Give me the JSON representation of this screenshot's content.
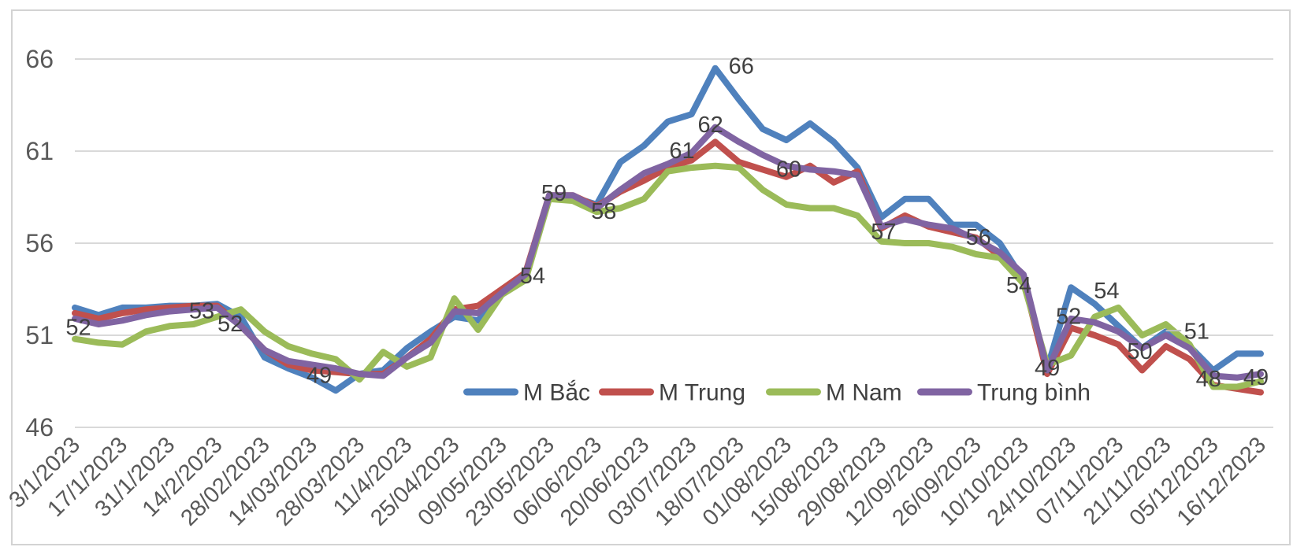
{
  "chart_data": {
    "type": "line",
    "title": "",
    "xlabel": "",
    "ylabel": "",
    "ylim": [
      46,
      66
    ],
    "y_ticks": [
      46,
      51,
      56,
      61,
      66
    ],
    "grid": "horizontal",
    "legend_position": "bottom-center-inside",
    "x_labels": [
      "3/1/2023",
      "17/1/2023",
      "31/1/2023",
      "14/2/2023",
      "28/02/2023",
      "14/03/2023",
      "28/03/2023",
      "11/4/2023",
      "25/04/2023",
      "09/05/2023",
      "23/05/2023",
      "06/06/2023",
      "20/06/2023",
      "03/07/2023",
      "18/07/2023",
      "01/08/2023",
      "15/08/2023",
      "29/08/2023",
      "12/09/2023",
      "26/09/2023",
      "10/10/2023",
      "24/10/2023",
      "07/11/2023",
      "21/11/2023",
      "05/12/2023",
      "16/12/2023"
    ],
    "points_per_label": 2,
    "n_points": 51,
    "series": [
      {
        "name": "M Bắc",
        "key": "m-bac",
        "color": "#4F81BD",
        "values": [
          52.5,
          52.1,
          52.5,
          52.5,
          52.6,
          52.6,
          52.7,
          52.0,
          49.8,
          49.2,
          48.7,
          48.0,
          48.9,
          49.1,
          50.3,
          51.2,
          52.0,
          51.8,
          53.2,
          54.2,
          58.5,
          58.5,
          58.1,
          60.4,
          61.3,
          62.6,
          63.0,
          65.5,
          63.8,
          62.2,
          61.6,
          62.5,
          61.5,
          60.1,
          57.4,
          58.4,
          58.4,
          57.0,
          57.0,
          56.0,
          54.0,
          49.2,
          53.6,
          52.7,
          51.5,
          50.3,
          51.2,
          50.4,
          49.1,
          50.0,
          50.0
        ]
      },
      {
        "name": "M Trung",
        "key": "m-trung",
        "color": "#C0504D",
        "values": [
          52.2,
          51.9,
          52.2,
          52.4,
          52.5,
          52.6,
          52.6,
          51.5,
          50.2,
          49.4,
          49.1,
          49.0,
          48.9,
          48.9,
          49.8,
          50.8,
          52.4,
          52.6,
          53.5,
          54.4,
          58.6,
          58.6,
          58.0,
          58.8,
          59.4,
          60.1,
          60.5,
          61.5,
          60.4,
          60.0,
          59.6,
          60.2,
          59.3,
          59.9,
          56.8,
          57.5,
          56.9,
          56.6,
          56.3,
          55.3,
          54.0,
          48.9,
          51.4,
          51.0,
          50.5,
          49.1,
          50.4,
          49.7,
          48.3,
          48.1,
          47.9
        ]
      },
      {
        "name": "M Nam",
        "key": "m-nam",
        "color": "#9BBB59",
        "values": [
          50.8,
          50.6,
          50.5,
          51.2,
          51.5,
          51.6,
          52.0,
          52.4,
          51.2,
          50.4,
          50.0,
          49.7,
          48.6,
          50.1,
          49.3,
          49.8,
          53.0,
          51.3,
          53.2,
          54.0,
          58.4,
          58.3,
          57.7,
          57.9,
          58.4,
          59.9,
          60.1,
          60.2,
          60.1,
          58.9,
          58.1,
          57.9,
          57.9,
          57.5,
          56.1,
          56.0,
          56.0,
          55.8,
          55.4,
          55.2,
          53.8,
          49.4,
          49.9,
          52.0,
          52.5,
          51.0,
          51.6,
          50.5,
          48.2,
          48.2,
          48.5
        ]
      },
      {
        "name": "Trung bình",
        "key": "trung-binh",
        "color": "#8064A2",
        "values": [
          51.9,
          51.6,
          51.8,
          52.1,
          52.3,
          52.4,
          52.5,
          51.5,
          50.2,
          49.6,
          49.4,
          49.2,
          48.9,
          48.8,
          49.8,
          50.6,
          52.3,
          52.2,
          53.3,
          54.3,
          58.6,
          58.6,
          57.9,
          58.9,
          59.8,
          60.3,
          60.9,
          62.3,
          61.5,
          60.8,
          60.2,
          60.0,
          59.9,
          59.7,
          56.9,
          57.3,
          57.0,
          56.8,
          56.2,
          55.5,
          54.3,
          49.1,
          51.9,
          51.7,
          51.2,
          50.3,
          51.0,
          50.3,
          48.8,
          48.7,
          48.9
        ]
      }
    ],
    "annotations": [
      {
        "x": 0.15,
        "v": 51.4,
        "text": "52"
      },
      {
        "x": 5.35,
        "v": 52.3,
        "text": "53"
      },
      {
        "x": 6.55,
        "v": 51.6,
        "text": "52"
      },
      {
        "x": 10.3,
        "v": 48.8,
        "text": "49"
      },
      {
        "x": 19.3,
        "v": 54.2,
        "text": "54"
      },
      {
        "x": 20.2,
        "v": 58.7,
        "text": "59"
      },
      {
        "x": 22.3,
        "v": 57.7,
        "text": "58"
      },
      {
        "x": 25.6,
        "v": 61.0,
        "text": "61"
      },
      {
        "x": 26.8,
        "v": 62.4,
        "text": "62"
      },
      {
        "x": 28.1,
        "v": 65.6,
        "text": "66"
      },
      {
        "x": 30.1,
        "v": 60.0,
        "text": "60"
      },
      {
        "x": 34.1,
        "v": 56.6,
        "text": "57"
      },
      {
        "x": 38.1,
        "v": 56.3,
        "text": "56"
      },
      {
        "x": 39.8,
        "v": 53.7,
        "text": "54"
      },
      {
        "x": 41.0,
        "v": 49.2,
        "text": "49"
      },
      {
        "x": 41.9,
        "v": 52.0,
        "text": "52"
      },
      {
        "x": 43.5,
        "v": 53.4,
        "text": "54"
      },
      {
        "x": 44.9,
        "v": 50.1,
        "text": "50"
      },
      {
        "x": 47.3,
        "v": 51.2,
        "text": "51",
        "leader": [
          46.0,
          51.25,
          46.65,
          51.25
        ]
      },
      {
        "x": 47.8,
        "v": 48.6,
        "text": "48"
      },
      {
        "x": 49.8,
        "v": 48.7,
        "text": "49"
      }
    ]
  },
  "colors": {
    "grid": "#D9D9D9",
    "border": "#D3D3D3",
    "axis_label": "#595959",
    "data_label": "#404040",
    "leader": "#BFBFBF",
    "background": "#FFFFFF"
  }
}
